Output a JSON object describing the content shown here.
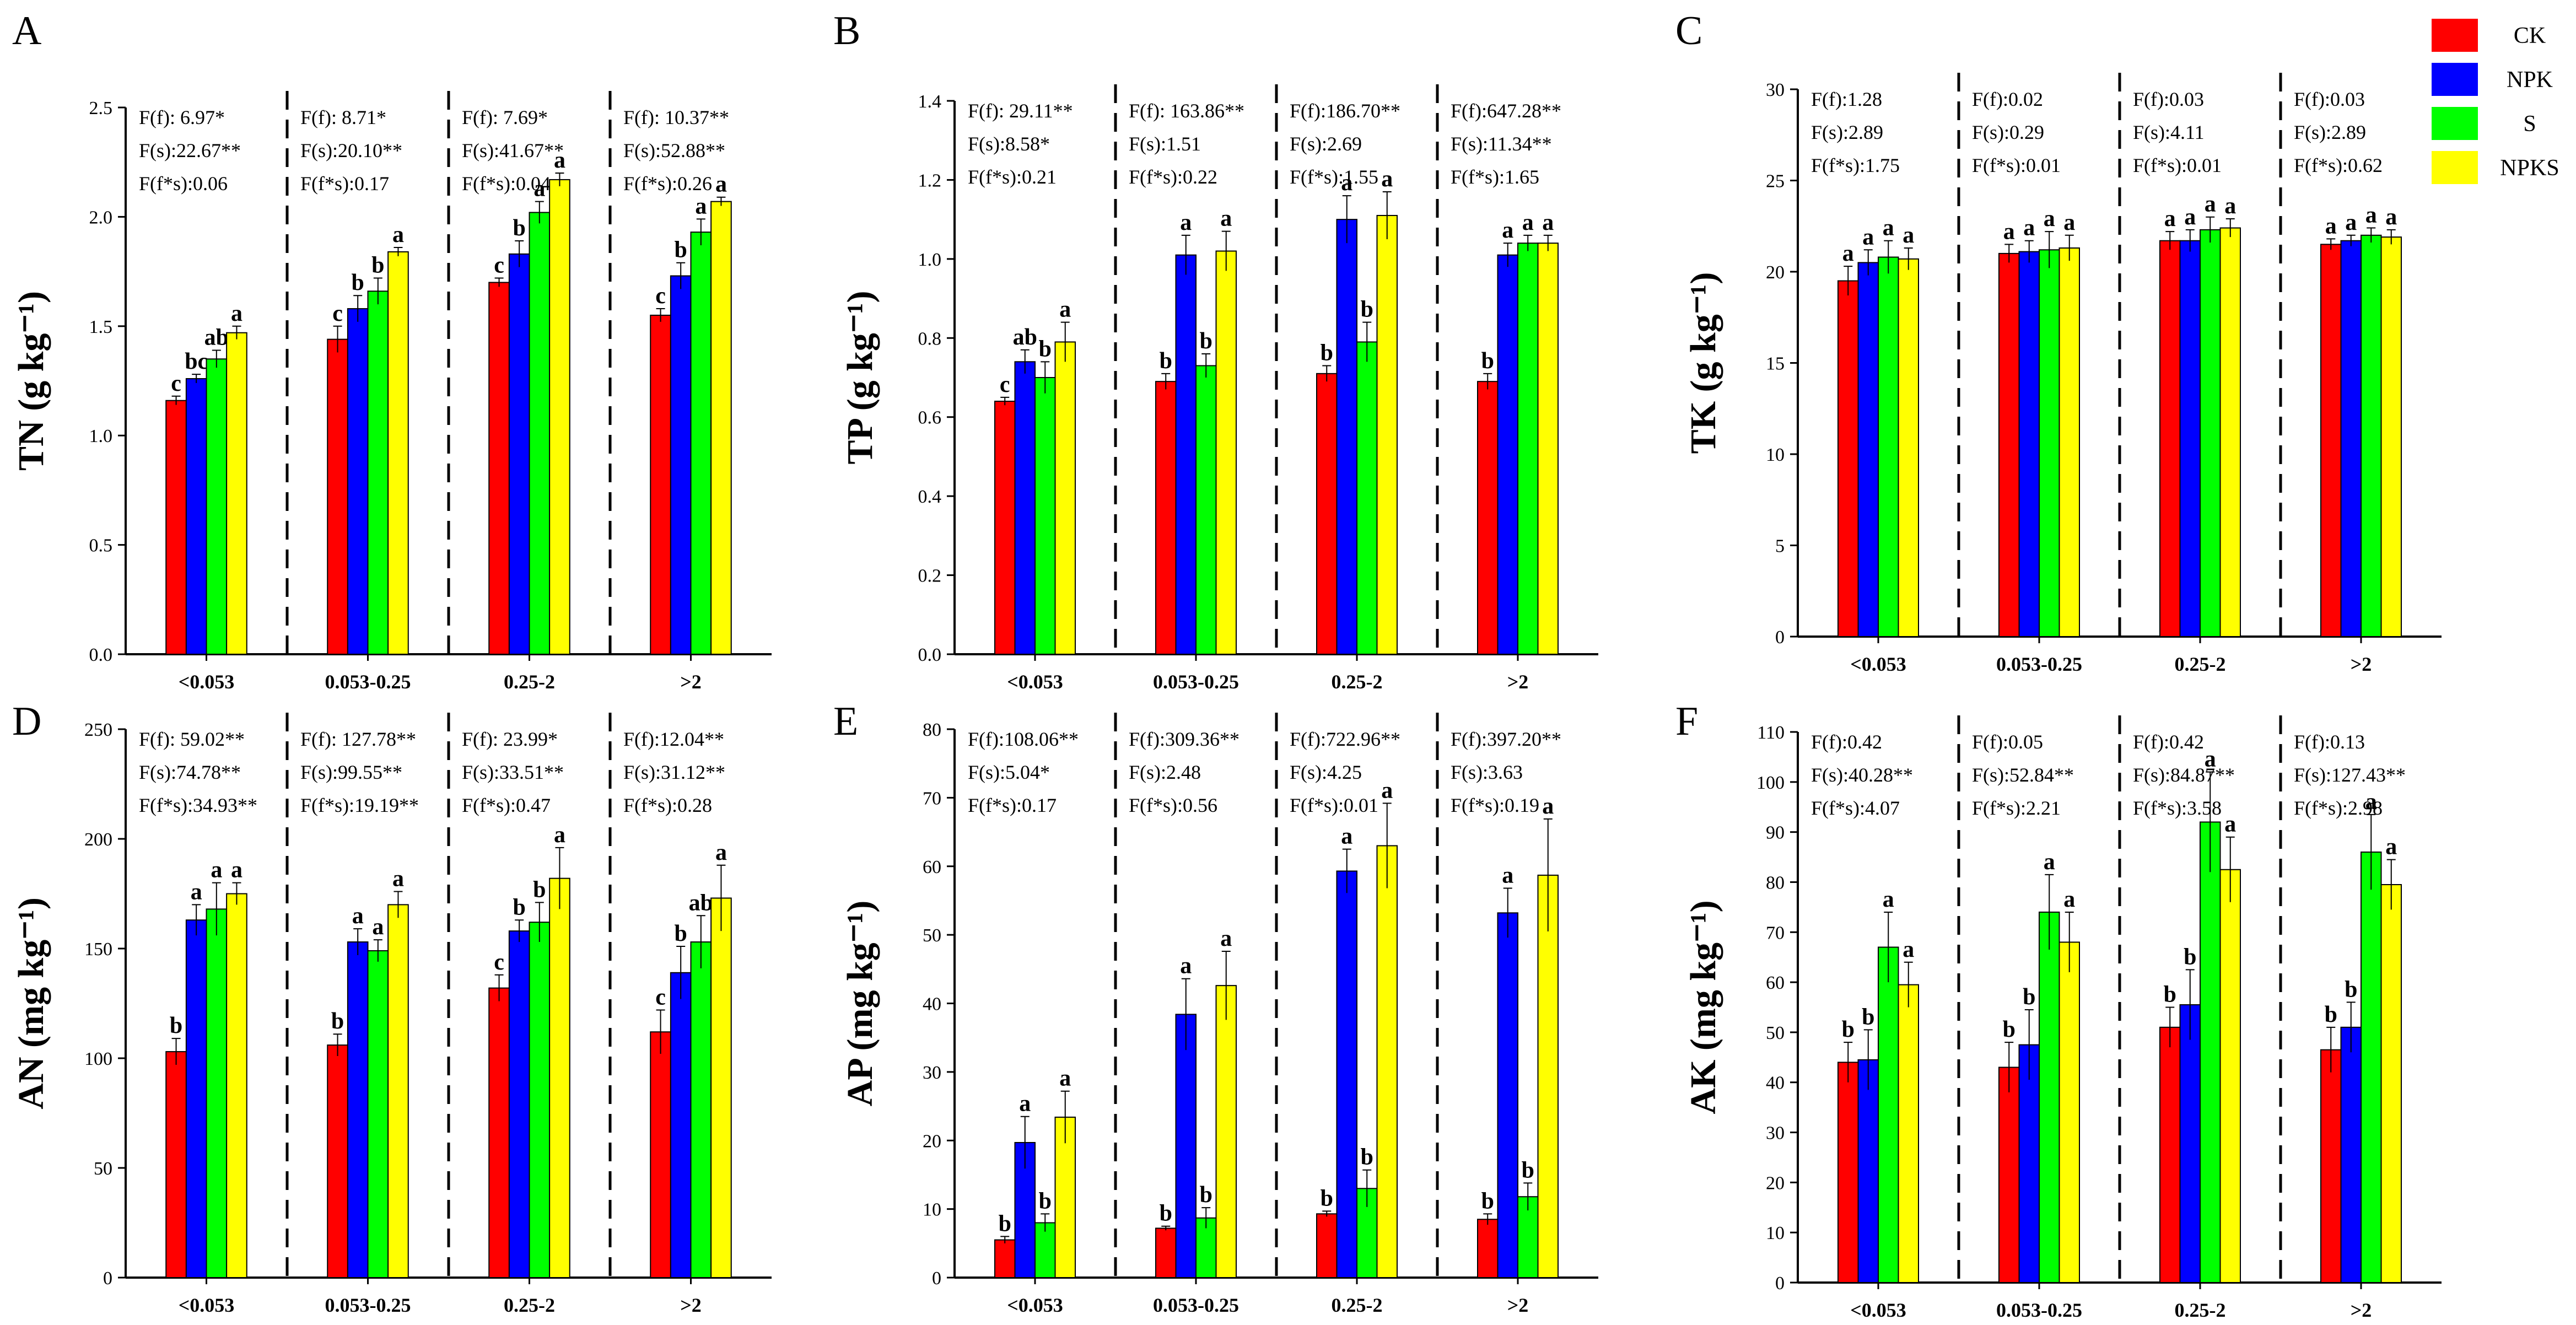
{
  "legend": [
    {
      "label": "CK",
      "color": "#ff0000"
    },
    {
      "label": "NPK",
      "color": "#0000ff"
    },
    {
      "label": "S",
      "color": "#00ff00"
    },
    {
      "label": "NPKS",
      "color": "#ffff00"
    }
  ],
  "chart_data": [
    {
      "type": "bar",
      "panel": "A",
      "ylabel": "TN (g kg⁻¹)",
      "ylim": [
        0,
        2.5
      ],
      "yticks": [
        "0.0",
        "0.5",
        "1.0",
        "1.5",
        "2.0",
        "2.5"
      ],
      "categories": [
        "<0.053",
        "0.053-0.25",
        "0.25-2",
        ">2"
      ],
      "series": [
        {
          "name": "CK",
          "values": [
            1.16,
            1.44,
            1.7,
            1.55
          ],
          "errors": [
            0.02,
            0.06,
            0.02,
            0.03
          ],
          "letters": [
            "c",
            "c",
            "c",
            "c"
          ]
        },
        {
          "name": "NPK",
          "values": [
            1.26,
            1.58,
            1.83,
            1.73
          ],
          "errors": [
            0.02,
            0.06,
            0.06,
            0.06
          ],
          "letters": [
            "bc",
            "b",
            "b",
            "b"
          ]
        },
        {
          "name": "S",
          "values": [
            1.35,
            1.66,
            2.02,
            1.93
          ],
          "errors": [
            0.04,
            0.06,
            0.05,
            0.06
          ],
          "letters": [
            "ab",
            "b",
            "a",
            "a"
          ]
        },
        {
          "name": "NPKS",
          "values": [
            1.47,
            1.84,
            2.17,
            2.07
          ],
          "errors": [
            0.03,
            0.02,
            0.03,
            0.02
          ],
          "letters": [
            "a",
            "a",
            "a",
            "a"
          ]
        }
      ],
      "stats": [
        [
          "F(f): 6.97*",
          "F(s):22.67**",
          "F(f*s):0.06"
        ],
        [
          "F(f): 8.71*",
          "F(s):20.10**",
          "F(f*s):0.17"
        ],
        [
          "F(f): 7.69*",
          "F(s):41.67**",
          "F(f*s):0.04"
        ],
        [
          "F(f): 10.37**",
          "F(s):52.88**",
          "F(f*s):0.26"
        ]
      ]
    },
    {
      "type": "bar",
      "panel": "B",
      "ylabel": "TP (g kg⁻¹)",
      "ylim": [
        0,
        1.4
      ],
      "yticks": [
        "0.0",
        "0.2",
        "0.4",
        "0.6",
        "0.8",
        "1.0",
        "1.2",
        "1.4"
      ],
      "categories": [
        "<0.053",
        "0.053-0.25",
        "0.25-2",
        ">2"
      ],
      "series": [
        {
          "name": "CK",
          "values": [
            0.64,
            0.69,
            0.71,
            0.69
          ],
          "errors": [
            0.01,
            0.02,
            0.02,
            0.02
          ],
          "letters": [
            "c",
            "b",
            "b",
            "b"
          ]
        },
        {
          "name": "NPK",
          "values": [
            0.74,
            1.01,
            1.1,
            1.01
          ],
          "errors": [
            0.03,
            0.05,
            0.06,
            0.03
          ],
          "letters": [
            "ab",
            "a",
            "a",
            "a"
          ]
        },
        {
          "name": "S",
          "values": [
            0.7,
            0.73,
            0.79,
            1.04
          ],
          "errors": [
            0.04,
            0.03,
            0.05,
            0.02
          ],
          "letters": [
            "b",
            "b",
            "b",
            "a"
          ]
        },
        {
          "name": "NPKS",
          "values": [
            0.79,
            1.02,
            1.11,
            1.04
          ],
          "errors": [
            0.05,
            0.05,
            0.06,
            0.02
          ],
          "letters": [
            "a",
            "a",
            "a",
            "a"
          ]
        }
      ],
      "stats": [
        [
          "F(f): 29.11**",
          "F(s):8.58*",
          "F(f*s):0.21"
        ],
        [
          "F(f): 163.86**",
          "F(s):1.51",
          "F(f*s):0.22"
        ],
        [
          "F(f):186.70**",
          "F(s):2.69",
          "F(f*s):1.55"
        ],
        [
          "F(f):647.28**",
          "F(s):11.34**",
          "F(f*s):1.65"
        ]
      ]
    },
    {
      "type": "bar",
      "panel": "C",
      "ylabel": "TK (g kg⁻¹)",
      "ylim": [
        0,
        30
      ],
      "yticks": [
        "0",
        "5",
        "10",
        "15",
        "20",
        "25",
        "30"
      ],
      "categories": [
        "<0.053",
        "0.053-0.25",
        "0.25-2",
        ">2"
      ],
      "series": [
        {
          "name": "CK",
          "values": [
            19.5,
            21.0,
            21.7,
            21.5
          ],
          "errors": [
            0.8,
            0.5,
            0.5,
            0.3
          ],
          "letters": [
            "a",
            "a",
            "a",
            "a"
          ]
        },
        {
          "name": "NPK",
          "values": [
            20.5,
            21.1,
            21.7,
            21.7
          ],
          "errors": [
            0.7,
            0.6,
            0.6,
            0.3
          ],
          "letters": [
            "a",
            "a",
            "a",
            "a"
          ]
        },
        {
          "name": "S",
          "values": [
            20.8,
            21.2,
            22.3,
            22.0
          ],
          "errors": [
            0.9,
            1.0,
            0.7,
            0.4
          ],
          "letters": [
            "a",
            "a",
            "a",
            "a"
          ]
        },
        {
          "name": "NPKS",
          "values": [
            20.7,
            21.3,
            22.4,
            21.9
          ],
          "errors": [
            0.6,
            0.7,
            0.5,
            0.4
          ],
          "letters": [
            "a",
            "a",
            "a",
            "a"
          ]
        }
      ],
      "stats": [
        [
          "F(f):1.28",
          "F(s):2.89",
          "F(f*s):1.75"
        ],
        [
          "F(f):0.02",
          "F(s):0.29",
          "F(f*s):0.01"
        ],
        [
          "F(f):0.03",
          "F(s):4.11",
          "F(f*s):0.01"
        ],
        [
          "F(f):0.03",
          "F(s):2.89",
          "F(f*s):0.62"
        ]
      ]
    },
    {
      "type": "bar",
      "panel": "D",
      "ylabel": "AN (mg kg⁻¹)",
      "ylim": [
        0,
        250
      ],
      "yticks": [
        "0",
        "50",
        "100",
        "150",
        "200",
        "250"
      ],
      "categories": [
        "<0.053",
        "0.053-0.25",
        "0.25-2",
        ">2"
      ],
      "series": [
        {
          "name": "CK",
          "values": [
            103,
            106,
            132,
            112
          ],
          "errors": [
            6,
            5,
            6,
            10
          ],
          "letters": [
            "b",
            "b",
            "c",
            "c"
          ]
        },
        {
          "name": "NPK",
          "values": [
            163,
            153,
            158,
            139
          ],
          "errors": [
            7,
            6,
            5,
            12
          ],
          "letters": [
            "a",
            "a",
            "b",
            "b"
          ]
        },
        {
          "name": "S",
          "values": [
            168,
            149,
            162,
            153
          ],
          "errors": [
            12,
            5,
            9,
            12
          ],
          "letters": [
            "a",
            "a",
            "b",
            "ab"
          ]
        },
        {
          "name": "NPKS",
          "values": [
            175,
            170,
            182,
            173
          ],
          "errors": [
            5,
            6,
            14,
            15
          ],
          "letters": [
            "a",
            "a",
            "a",
            "a"
          ]
        }
      ],
      "stats": [
        [
          "F(f): 59.02**",
          "F(s):74.78**",
          "F(f*s):34.93**"
        ],
        [
          "F(f): 127.78**",
          "F(s):99.55**",
          "F(f*s):19.19**"
        ],
        [
          "F(f): 23.99*",
          "F(s):33.51**",
          "F(f*s):0.47"
        ],
        [
          "F(f):12.04**",
          "F(s):31.12**",
          "F(f*s):0.28"
        ]
      ]
    },
    {
      "type": "bar",
      "panel": "E",
      "ylabel": "AP (mg kg⁻¹)",
      "ylim": [
        0,
        80
      ],
      "yticks": [
        "0",
        "10",
        "20",
        "30",
        "40",
        "50",
        "60",
        "70",
        "80"
      ],
      "categories": [
        "<0.053",
        "0.053-0.25",
        "0.25-2",
        ">2"
      ],
      "series": [
        {
          "name": "CK",
          "values": [
            5.5,
            7.2,
            9.3,
            8.5
          ],
          "errors": [
            0.5,
            0.3,
            0.4,
            0.8
          ],
          "letters": [
            "b",
            "b",
            "b",
            "b"
          ]
        },
        {
          "name": "NPK",
          "values": [
            19.7,
            38.4,
            59.3,
            53.2
          ],
          "errors": [
            3.8,
            5.2,
            3.2,
            3.6
          ],
          "letters": [
            "a",
            "a",
            "a",
            "a"
          ]
        },
        {
          "name": "S",
          "values": [
            8.0,
            8.7,
            13.0,
            11.8
          ],
          "errors": [
            1.3,
            1.5,
            2.7,
            2.0
          ],
          "letters": [
            "b",
            "b",
            "b",
            "b"
          ]
        },
        {
          "name": "NPKS",
          "values": [
            23.4,
            42.6,
            63.0,
            58.7
          ],
          "errors": [
            3.8,
            5.0,
            6.2,
            8.2
          ],
          "letters": [
            "a",
            "a",
            "a",
            "a"
          ]
        }
      ],
      "stats": [
        [
          "F(f):108.06**",
          "F(s):5.04*",
          "F(f*s):0.17"
        ],
        [
          "F(f):309.36**",
          "F(s):2.48",
          "F(f*s):0.56"
        ],
        [
          "F(f):722.96**",
          "F(s):4.25",
          "F(f*s):0.01"
        ],
        [
          "F(f):397.20**",
          "F(s):3.63",
          "F(f*s):0.19"
        ]
      ]
    },
    {
      "type": "bar",
      "panel": "F",
      "ylabel": "AK (mg kg⁻¹)",
      "ylim": [
        0,
        110
      ],
      "yticks": [
        "0",
        "10",
        "20",
        "30",
        "40",
        "50",
        "60",
        "70",
        "80",
        "90",
        "100",
        "110"
      ],
      "categories": [
        "<0.053",
        "0.053-0.25",
        "0.25-2",
        ">2"
      ],
      "series": [
        {
          "name": "CK",
          "values": [
            44,
            43,
            51,
            46.5
          ],
          "errors": [
            4,
            5,
            4,
            4.5
          ],
          "letters": [
            "b",
            "b",
            "b",
            "b"
          ]
        },
        {
          "name": "NPK",
          "values": [
            44.5,
            47.5,
            55.5,
            51
          ],
          "errors": [
            6,
            7,
            7,
            5
          ],
          "letters": [
            "b",
            "b",
            "b",
            "b"
          ]
        },
        {
          "name": "S",
          "values": [
            67,
            74,
            92,
            86
          ],
          "errors": [
            7,
            7.5,
            10,
            7.5
          ],
          "letters": [
            "a",
            "a",
            "a",
            "a"
          ]
        },
        {
          "name": "NPKS",
          "values": [
            59.5,
            68,
            82.5,
            79.5
          ],
          "errors": [
            4.5,
            6,
            6.5,
            5
          ],
          "letters": [
            "a",
            "a",
            "a",
            "a"
          ]
        }
      ],
      "stats": [
        [
          "F(f):0.42",
          "F(s):40.28**",
          "F(f*s):4.07"
        ],
        [
          "F(f):0.05",
          "F(s):52.84**",
          "F(f*s):2.21"
        ],
        [
          "F(f):0.42",
          "F(s):84.87**",
          "F(f*s):3.58"
        ],
        [
          "F(f):0.13",
          "F(s):127.43**",
          "F(f*s):2.98"
        ]
      ]
    }
  ]
}
